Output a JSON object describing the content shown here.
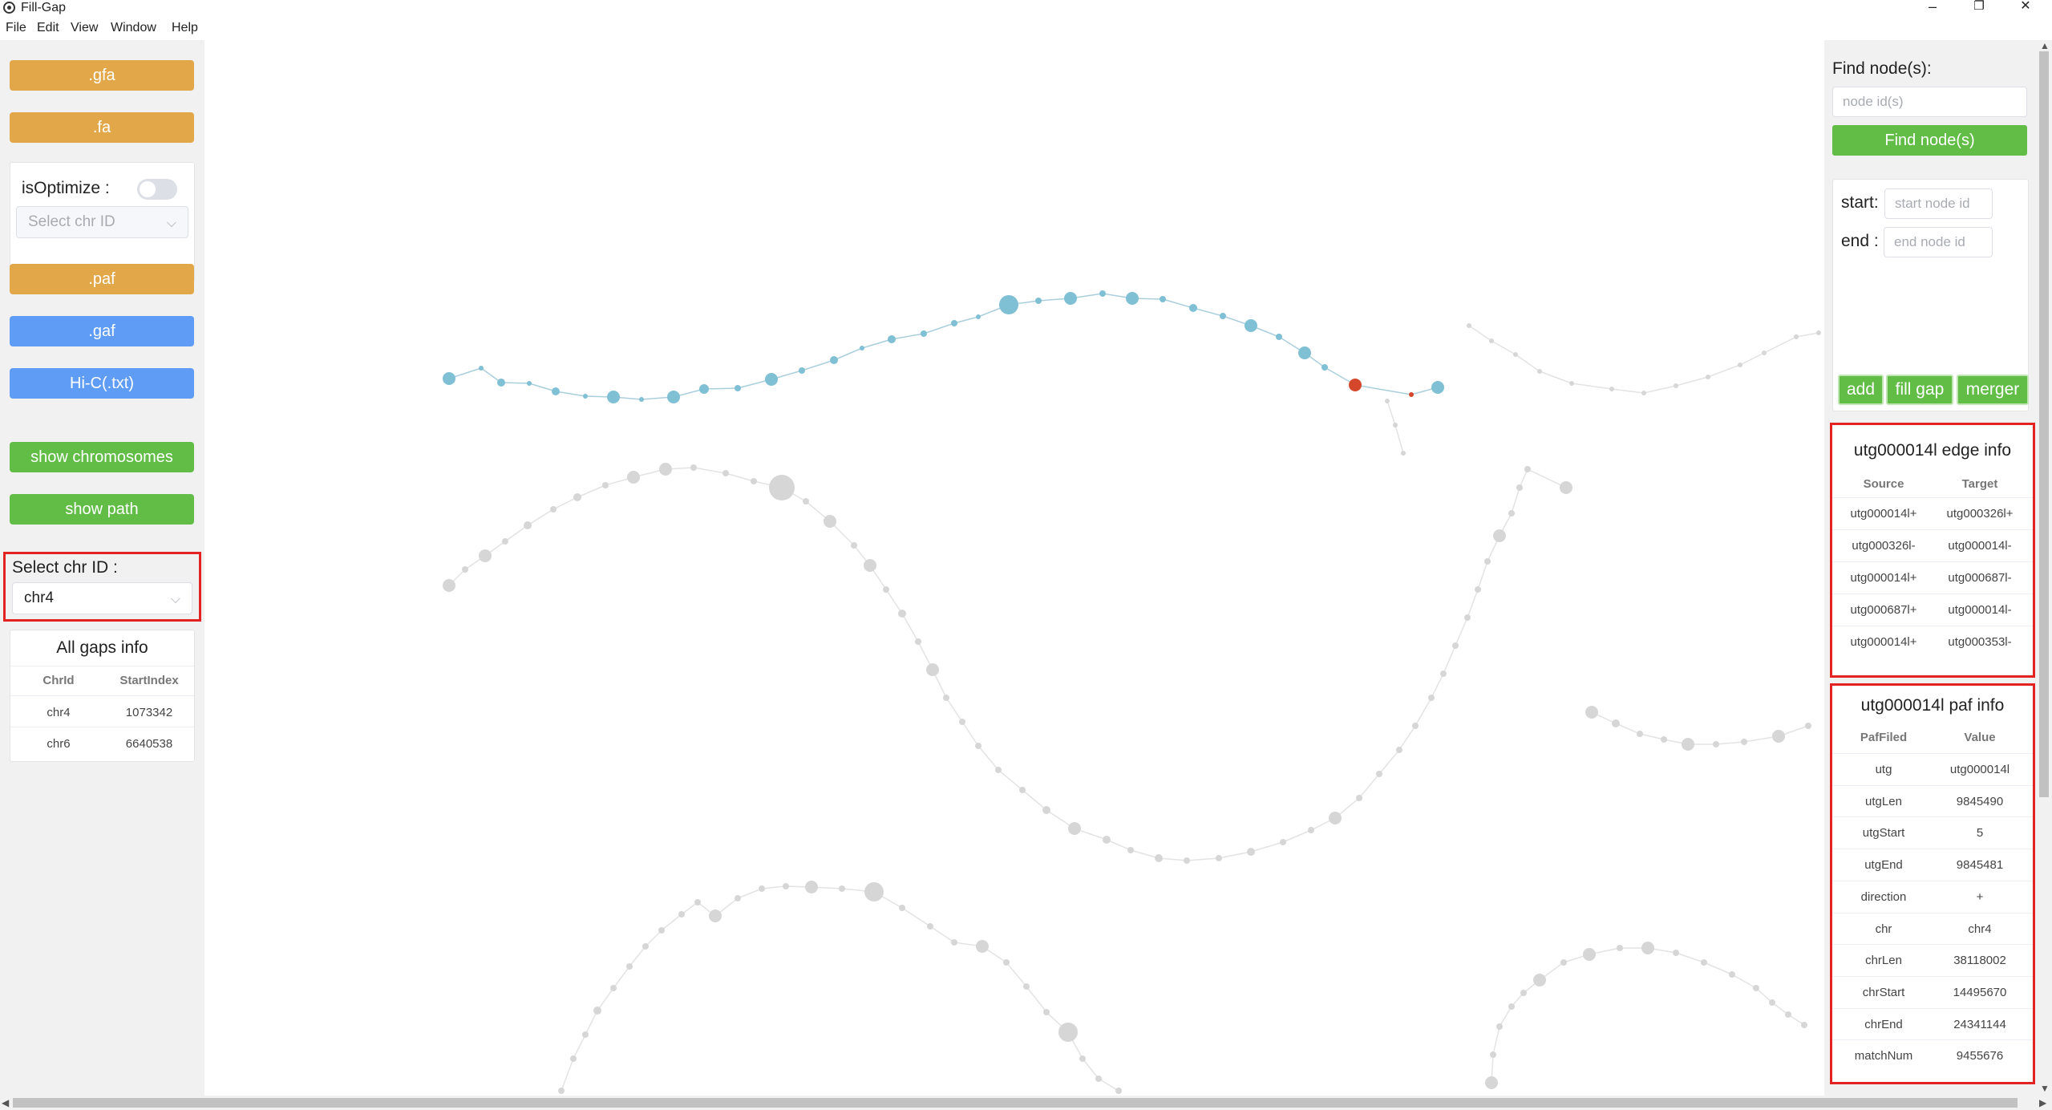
{
  "window": {
    "title": "Fill-Gap",
    "minimize": "–",
    "restore": "❐",
    "close": "✕"
  },
  "menu": [
    "File",
    "Edit",
    "View",
    "Window",
    "Help"
  ],
  "left": {
    "buttons": {
      "gfa": ".gfa",
      "fa": ".fa",
      "paf": ".paf",
      "gaf": ".gaf",
      "hic": "Hi-C(.txt)",
      "show_chromosomes": "show chromosomes",
      "show_path": "show path"
    },
    "optimize": {
      "label": "isOptimize :",
      "toggle_on": false,
      "select_placeholder": "Select chr ID"
    },
    "select_chr": {
      "label": "Select chr ID :",
      "value": "chr4"
    },
    "gaps": {
      "title": "All gaps info",
      "columns": [
        "ChrId",
        "StartIndex"
      ],
      "rows": [
        [
          "chr4",
          "1073342"
        ],
        [
          "chr6",
          "6640538"
        ]
      ]
    }
  },
  "right": {
    "find": {
      "label": "Find node(s):",
      "placeholder": "node id(s)",
      "button": "Find node(s)"
    },
    "path": {
      "start_label": "start:",
      "start_placeholder": "start node id",
      "end_label": "end :",
      "end_placeholder": "end node id",
      "add": "add",
      "fill_gap": "fill gap",
      "merger": "merger"
    },
    "edge_info": {
      "title": "utg000014l edge info",
      "columns": [
        "Source",
        "Target"
      ],
      "rows": [
        [
          "utg000014l+",
          "utg000326l+"
        ],
        [
          "utg000326l-",
          "utg000014l-"
        ],
        [
          "utg000014l+",
          "utg000687l-"
        ],
        [
          "utg000687l+",
          "utg000014l-"
        ],
        [
          "utg000014l+",
          "utg000353l-"
        ]
      ]
    },
    "paf_info": {
      "title": "utg000014l paf info",
      "columns": [
        "PafFiled",
        "Value"
      ],
      "rows": [
        [
          "utg",
          "utg000014l"
        ],
        [
          "utgLen",
          "9845490"
        ],
        [
          "utgStart",
          "5"
        ],
        [
          "utgEnd",
          "9845481"
        ],
        [
          "direction",
          "+"
        ],
        [
          "chr",
          "chr4"
        ],
        [
          "chrLen",
          "38118002"
        ],
        [
          "chrStart",
          "14495670"
        ],
        [
          "chrEnd",
          "24341144"
        ],
        [
          "matchNum",
          "9455676"
        ]
      ]
    }
  },
  "colors": {
    "highlighted_node": "#7fc0d4",
    "selected_node": "#d4472b",
    "default_node": "#d6d6d6"
  }
}
